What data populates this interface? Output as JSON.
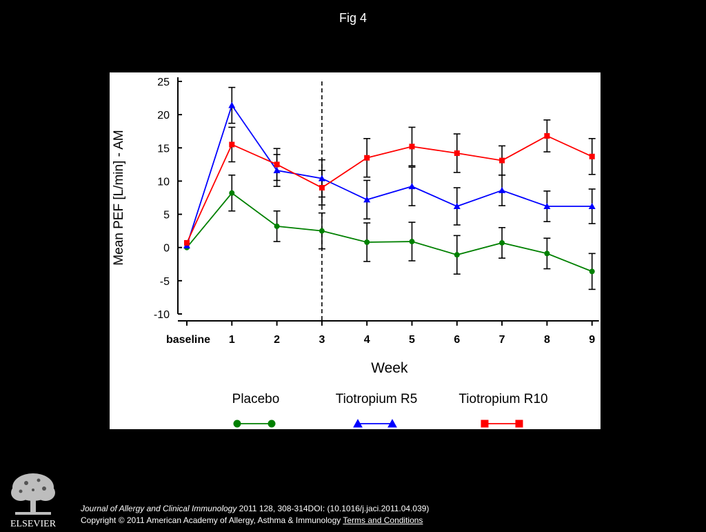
{
  "page": {
    "title": "Fig 4",
    "publisher": "ELSEVIER",
    "citation": {
      "journal": "Journal of Allergy and Clinical Immunology",
      "ref": " 2011 128, 308-314DOI: (10.1016/j.jaci.2011.04.039)",
      "copyright": "Copyright © 2011 American Academy of Allergy, Asthma & Immunology",
      "terms_link": "Terms and Conditions"
    }
  },
  "chart_data": {
    "type": "line",
    "xlabel": "Week",
    "ylabel": "Mean PEF [L/min] - AM",
    "categories": [
      "baseline",
      "1",
      "2",
      "3",
      "4",
      "5",
      "6",
      "7",
      "8",
      "9"
    ],
    "ylim": [
      -10,
      25
    ],
    "yticks": [
      -10,
      -5,
      0,
      5,
      10,
      15,
      20,
      25
    ],
    "grid": false,
    "vertical_reference_line_at": "3",
    "legend_placement": "bottom",
    "series": [
      {
        "name": "Placebo",
        "color": "#008000",
        "marker": "circle",
        "values": [
          0.0,
          8.2,
          3.2,
          2.5,
          0.8,
          0.9,
          -1.1,
          0.7,
          -0.9,
          -3.6
        ],
        "errors": [
          null,
          2.7,
          2.3,
          2.7,
          2.9,
          2.9,
          2.9,
          2.3,
          2.3,
          2.7
        ]
      },
      {
        "name": "Tiotropium R5",
        "color": "#0000ff",
        "marker": "triangle",
        "values": [
          0.3,
          21.4,
          11.6,
          10.4,
          7.2,
          9.2,
          6.2,
          8.6,
          6.2,
          6.2
        ],
        "errors": [
          null,
          2.7,
          2.4,
          2.8,
          2.9,
          2.9,
          2.8,
          2.3,
          2.3,
          2.6
        ]
      },
      {
        "name": "Tiotropium R10",
        "color": "#ff0000",
        "marker": "square",
        "values": [
          0.7,
          15.5,
          12.5,
          9.0,
          13.5,
          15.2,
          14.2,
          13.1,
          16.8,
          13.7
        ],
        "errors": [
          null,
          2.6,
          2.4,
          2.6,
          2.9,
          2.9,
          2.9,
          2.2,
          2.4,
          2.7
        ]
      }
    ]
  }
}
